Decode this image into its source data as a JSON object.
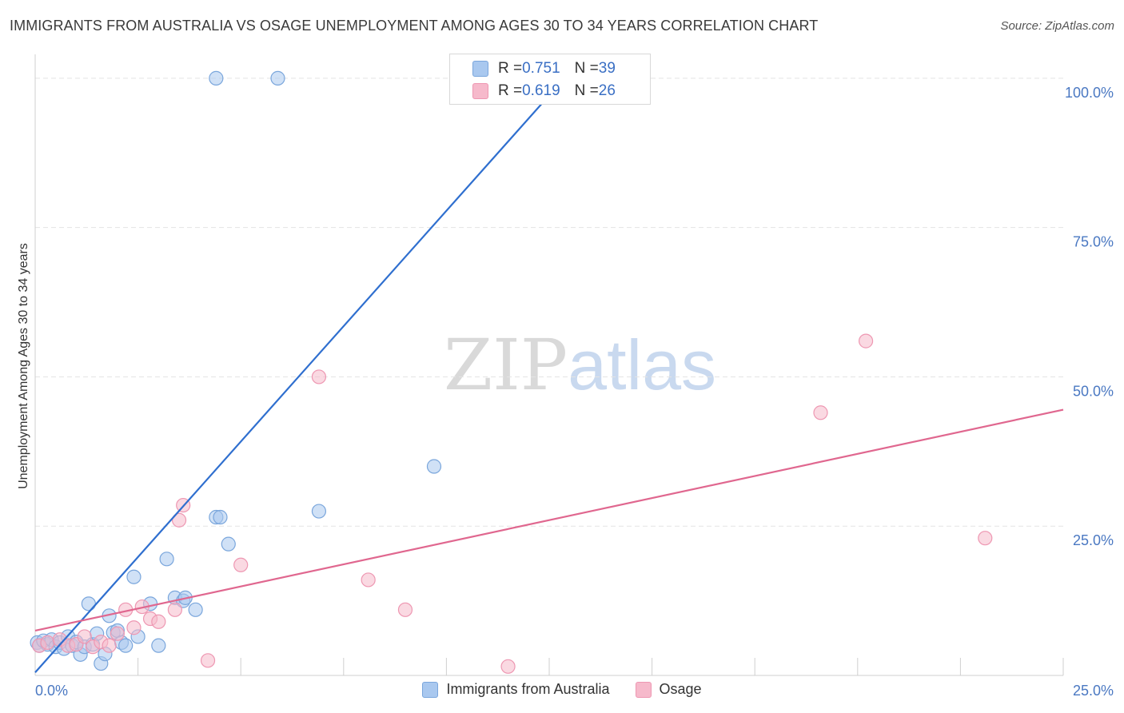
{
  "title": "IMMIGRANTS FROM AUSTRALIA VS OSAGE UNEMPLOYMENT AMONG AGES 30 TO 34 YEARS CORRELATION CHART",
  "source": "Source: ZipAtlas.com",
  "watermark": {
    "zip": "ZIP",
    "atlas": "atlas"
  },
  "stats": [
    {
      "r_label": "R = ",
      "r_value": "0.751",
      "n_label": "N = ",
      "n_value": "39"
    },
    {
      "r_label": "R = ",
      "r_value": "0.619",
      "n_label": "N = ",
      "n_value": "26"
    }
  ],
  "colors": {
    "australia_fill": "#a9c8ef",
    "australia_stroke": "#7aa6dc",
    "australia_line": "#2f6fcf",
    "osage_fill": "#f6b9cb",
    "osage_stroke": "#ee97b2",
    "osage_line": "#e0678f",
    "grid": "#e4e4e4",
    "tick_text": "#4a78c2"
  },
  "chart_data": {
    "type": "scatter",
    "xlabel": "",
    "ylabel": "Unemployment Among Ages 30 to 34 years",
    "xlim": [
      0,
      25
    ],
    "ylim": [
      0,
      104
    ],
    "x_ticks": [
      "0.0%",
      "25.0%"
    ],
    "y_ticks": [
      {
        "value": 25,
        "label": "25.0%"
      },
      {
        "value": 50,
        "label": "50.0%"
      },
      {
        "value": 75,
        "label": "75.0%"
      },
      {
        "value": 100,
        "label": "100.0%"
      }
    ],
    "legend_placement": "bottom-center",
    "grid": true,
    "series": [
      {
        "name": "Immigrants from Australia",
        "points": [
          [
            0.05,
            5.5
          ],
          [
            0.1,
            5.0
          ],
          [
            0.2,
            5.8
          ],
          [
            0.3,
            5.2
          ],
          [
            0.4,
            6.0
          ],
          [
            0.5,
            4.8
          ],
          [
            0.6,
            5.5
          ],
          [
            0.7,
            4.5
          ],
          [
            0.8,
            6.5
          ],
          [
            0.9,
            5.0
          ],
          [
            1.0,
            5.6
          ],
          [
            1.1,
            3.5
          ],
          [
            1.2,
            4.8
          ],
          [
            1.3,
            12.0
          ],
          [
            1.4,
            5.2
          ],
          [
            1.5,
            7.0
          ],
          [
            1.6,
            2.0
          ],
          [
            1.7,
            3.6
          ],
          [
            1.8,
            10.0
          ],
          [
            1.9,
            7.2
          ],
          [
            2.0,
            7.5
          ],
          [
            2.1,
            5.5
          ],
          [
            2.2,
            5.0
          ],
          [
            2.4,
            16.5
          ],
          [
            2.5,
            6.5
          ],
          [
            2.8,
            12.0
          ],
          [
            3.0,
            5.0
          ],
          [
            3.2,
            19.5
          ],
          [
            3.4,
            13.0
          ],
          [
            3.6,
            12.5
          ],
          [
            3.65,
            13.0
          ],
          [
            3.9,
            11.0
          ],
          [
            4.4,
            100.0
          ],
          [
            4.4,
            26.5
          ],
          [
            4.7,
            22.0
          ],
          [
            5.9,
            100.0
          ],
          [
            6.9,
            27.5
          ],
          [
            9.7,
            35.0
          ],
          [
            4.5,
            26.5
          ]
        ],
        "trend": {
          "x": [
            0.0,
            13.0
          ],
          "y": [
            0.5,
            101.0
          ]
        }
      },
      {
        "name": "Osage",
        "points": [
          [
            0.1,
            5.0
          ],
          [
            0.3,
            5.5
          ],
          [
            0.6,
            6.0
          ],
          [
            0.8,
            5.0
          ],
          [
            1.0,
            5.2
          ],
          [
            1.2,
            6.5
          ],
          [
            1.4,
            4.8
          ],
          [
            1.6,
            5.6
          ],
          [
            1.8,
            5.0
          ],
          [
            2.0,
            7.0
          ],
          [
            2.2,
            11.0
          ],
          [
            2.4,
            8.0
          ],
          [
            2.6,
            11.5
          ],
          [
            2.8,
            9.5
          ],
          [
            3.0,
            9.0
          ],
          [
            3.4,
            11.0
          ],
          [
            3.6,
            28.5
          ],
          [
            3.5,
            26.0
          ],
          [
            4.2,
            2.5
          ],
          [
            5.0,
            18.5
          ],
          [
            6.9,
            50.0
          ],
          [
            8.1,
            16.0
          ],
          [
            9.0,
            11.0
          ],
          [
            11.5,
            1.5
          ],
          [
            19.1,
            44.0
          ],
          [
            20.2,
            56.0
          ]
        ],
        "extra_points": [
          [
            23.1,
            23.0
          ]
        ],
        "trend": {
          "x": [
            0.0,
            25.0
          ],
          "y": [
            7.5,
            44.5
          ]
        }
      }
    ]
  }
}
